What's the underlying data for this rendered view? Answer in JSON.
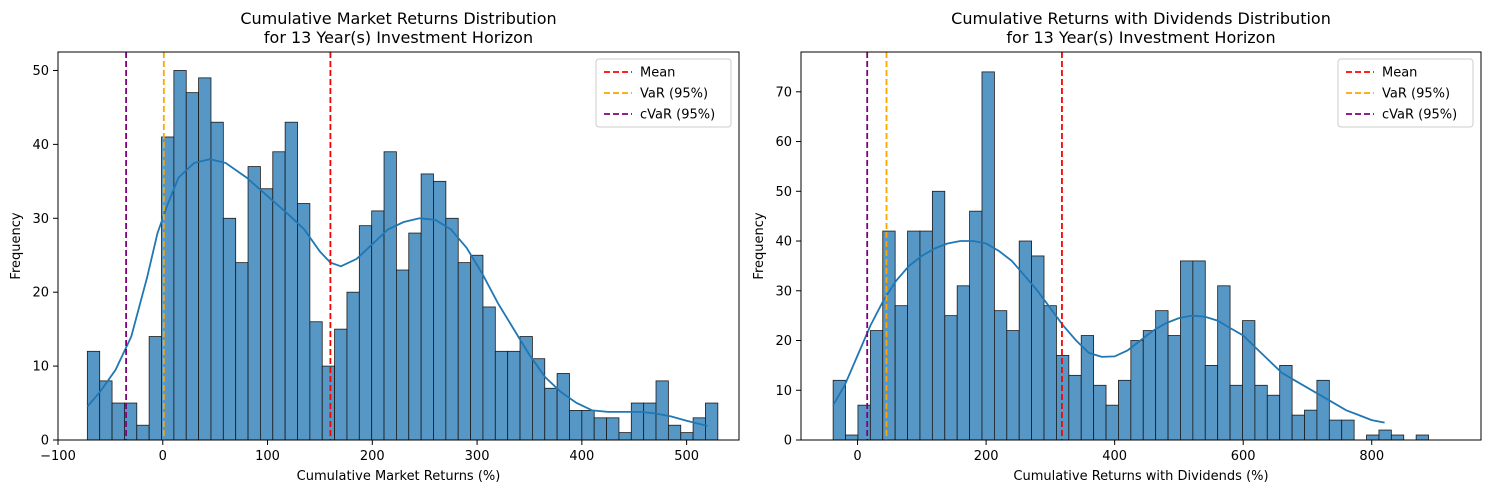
{
  "chart_data": [
    {
      "type": "histogram",
      "title": "Cumulative Market Returns Distribution\nfor 13 Year(s) Investment Horizon",
      "xlabel": "Cumulative Market Returns (%)",
      "ylabel": "Frequency",
      "xlim": [
        -100,
        550
      ],
      "ylim": [
        0,
        52.5
      ],
      "xticks": [
        -100,
        0,
        100,
        200,
        300,
        400,
        500
      ],
      "yticks": [
        0,
        10,
        20,
        30,
        40,
        50
      ],
      "grid": false,
      "legend_position": "top-right",
      "bin_start": -72,
      "bin_width": 11.8,
      "counts": [
        12,
        8,
        5,
        5,
        2,
        14,
        41,
        50,
        47,
        49,
        43,
        30,
        24,
        37,
        34,
        39,
        43,
        32,
        16,
        10,
        15,
        20,
        29,
        31,
        39,
        23,
        28,
        36,
        35,
        30,
        24,
        25,
        18,
        12,
        12,
        14,
        11,
        7,
        9,
        4,
        4,
        3,
        3,
        1,
        5,
        5,
        8,
        2,
        1,
        3,
        5
      ],
      "kde": {
        "x": [
          -72,
          -60,
          -45,
          -30,
          -15,
          -5,
          5,
          15,
          30,
          45,
          60,
          80,
          100,
          120,
          135,
          150,
          160,
          170,
          185,
          200,
          215,
          230,
          245,
          260,
          275,
          290,
          305,
          320,
          335,
          350,
          365,
          380,
          395,
          410,
          425,
          440,
          455,
          470,
          485,
          500,
          520
        ],
        "y": [
          4.5,
          6.5,
          9.5,
          14,
          22,
          28,
          32,
          35.5,
          37.5,
          38,
          37.5,
          35.5,
          33,
          30.5,
          28.5,
          25.5,
          24,
          23.5,
          24.5,
          26.5,
          28.5,
          29.5,
          30,
          29.8,
          28.5,
          26,
          22.5,
          18.5,
          15,
          11.5,
          8.5,
          6.5,
          5,
          4,
          3.8,
          3.8,
          3.8,
          3.6,
          3.2,
          2.6,
          1.9
        ]
      },
      "vlines": [
        {
          "name": "Mean",
          "x": 160,
          "color": "#ff0000"
        },
        {
          "name": "VaR (95%)",
          "x": 1,
          "color": "#ffa500"
        },
        {
          "name": "cVaR (95%)",
          "x": -35,
          "color": "#800080"
        }
      ]
    },
    {
      "type": "histogram",
      "title": "Cumulative Returns with Dividends Distribution\nfor 13 Year(s) Investment Horizon",
      "xlabel": "Cumulative Returns with Dividends (%)",
      "ylabel": "Frequency",
      "xlim": [
        -88,
        970
      ],
      "ylim": [
        0,
        78
      ],
      "xticks": [
        0,
        200,
        400,
        600,
        800
      ],
      "yticks": [
        0,
        10,
        20,
        30,
        40,
        50,
        60,
        70
      ],
      "grid": false,
      "legend_position": "top-right",
      "bin_start": -38,
      "bin_width": 19.3,
      "counts": [
        12,
        1,
        7,
        22,
        42,
        27,
        42,
        42,
        50,
        25,
        31,
        46,
        74,
        26,
        22,
        40,
        37,
        27,
        17,
        13,
        21,
        11,
        7,
        12,
        20,
        22,
        26,
        21,
        36,
        36,
        15,
        31,
        11,
        24,
        11,
        9,
        15,
        5,
        6,
        12,
        4,
        4,
        0,
        1,
        2,
        1,
        0,
        1
      ],
      "kde": {
        "x": [
          -38,
          -20,
          0,
          20,
          40,
          60,
          80,
          100,
          120,
          140,
          160,
          180,
          200,
          220,
          240,
          260,
          280,
          300,
          320,
          340,
          360,
          380,
          400,
          420,
          440,
          460,
          480,
          500,
          520,
          540,
          560,
          580,
          600,
          620,
          640,
          660,
          680,
          700,
          720,
          740,
          760,
          780,
          800,
          820
        ],
        "y": [
          7,
          11,
          17,
          23,
          28,
          32,
          35,
          37,
          38.5,
          39.5,
          40,
          40,
          39.5,
          38,
          36,
          33,
          30,
          26.5,
          23,
          20,
          17.5,
          16.7,
          16.8,
          18,
          20,
          22,
          23.5,
          24.5,
          25,
          24.8,
          24,
          22.5,
          21,
          18.5,
          16,
          13.5,
          12,
          10.5,
          9,
          7.5,
          6,
          5,
          4,
          3.5
        ]
      },
      "vlines": [
        {
          "name": "Mean",
          "x": 318,
          "color": "#ff0000"
        },
        {
          "name": "VaR (95%)",
          "x": 45,
          "color": "#ffa500"
        },
        {
          "name": "cVaR (95%)",
          "x": 15,
          "color": "#800080"
        }
      ]
    }
  ]
}
